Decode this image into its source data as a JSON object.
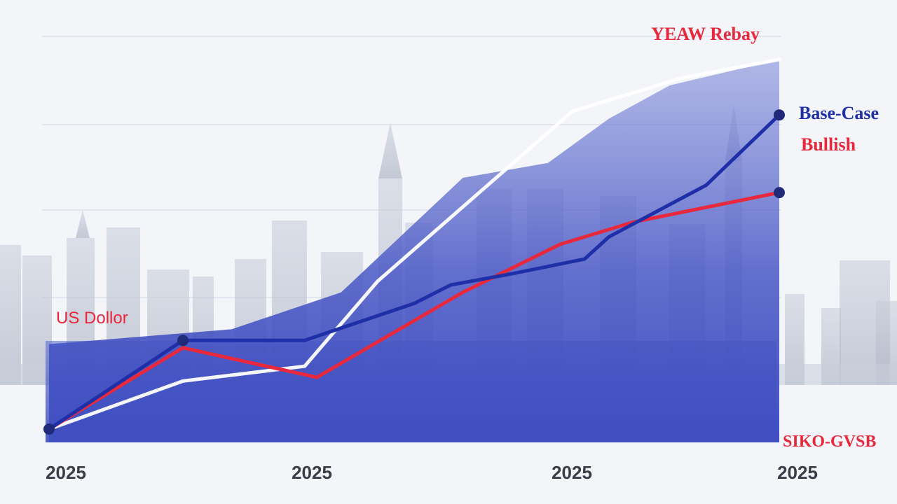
{
  "chart_data": {
    "type": "line",
    "title": "YEAW Rebay",
    "x": [
      "2025",
      "2025",
      "2025",
      "2025"
    ],
    "x_positions": [
      0,
      1,
      2,
      3
    ],
    "ylim": [
      0,
      100
    ],
    "grid": true,
    "series": [
      {
        "name": "Base-Case",
        "color": "#1f2fa8",
        "points": [
          [
            0,
            0
          ],
          [
            0.55,
            24
          ],
          [
            1.05,
            24
          ],
          [
            1.5,
            34
          ],
          [
            1.65,
            39
          ],
          [
            1.9,
            42
          ],
          [
            2.2,
            46
          ],
          [
            2.3,
            52
          ],
          [
            2.7,
            66
          ],
          [
            3.0,
            85
          ]
        ],
        "endpoint_markers": true,
        "marked_points": [
          0,
          1,
          9
        ]
      },
      {
        "name": "Bullish",
        "color": "#e8283c",
        "points": [
          [
            0,
            0
          ],
          [
            0.55,
            22
          ],
          [
            1.1,
            14
          ],
          [
            1.7,
            37
          ],
          [
            2.1,
            50
          ],
          [
            2.4,
            56
          ],
          [
            3.0,
            64
          ]
        ],
        "marked_points": [
          6
        ]
      },
      {
        "name": "",
        "color": "#ffffff",
        "points": [
          [
            0,
            0
          ],
          [
            0.55,
            13
          ],
          [
            1.05,
            17
          ],
          [
            1.35,
            40
          ],
          [
            1.75,
            63
          ],
          [
            2.15,
            86
          ],
          [
            2.6,
            95
          ],
          [
            3.0,
            100
          ]
        ],
        "marked_points": []
      }
    ],
    "area_upper": [
      [
        0,
        23
      ],
      [
        0.75,
        27
      ],
      [
        1.2,
        37
      ],
      [
        1.7,
        68
      ],
      [
        2.05,
        72
      ],
      [
        2.3,
        84
      ],
      [
        2.55,
        93
      ],
      [
        3.0,
        100
      ]
    ],
    "area_lower": [
      [
        0,
        0
      ],
      [
        3.0,
        0
      ]
    ],
    "annotations": [
      {
        "text": "YEAW Rebay",
        "color": "#e8283c"
      },
      {
        "text": "Base-Case",
        "color": "#1f2fa8"
      },
      {
        "text": "Bullish",
        "color": "#e8283c"
      },
      {
        "text": "US Dollor",
        "color": "#e8283c"
      },
      {
        "text": "SIKO-GVSB",
        "color": "#e8283c"
      }
    ]
  },
  "colors": {
    "background": "#f3f5f9",
    "area_fill": "#3f4fc0",
    "grid": "#e3e6ee",
    "tick_text": "#3a3d48"
  }
}
